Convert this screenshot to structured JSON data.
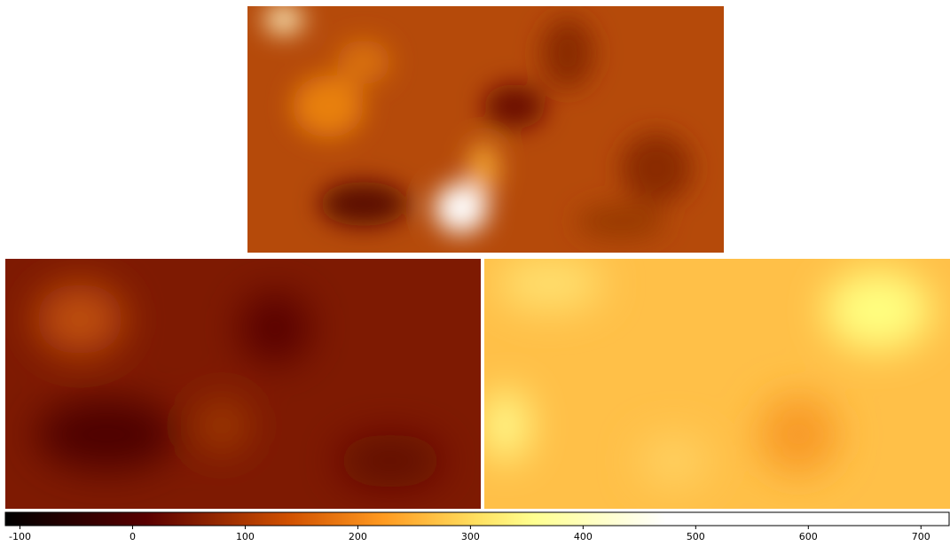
{
  "chart_data": {
    "type": "colorbar",
    "xlim": [
      -113,
      725
    ],
    "xticks": [
      -100,
      0,
      100,
      200,
      300,
      400,
      500,
      600,
      700
    ]
  }
}
